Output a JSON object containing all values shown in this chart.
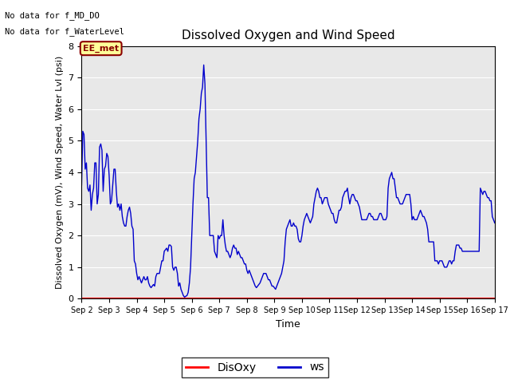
{
  "title": "Dissolved Oxygen and Wind Speed",
  "xlabel": "Time",
  "ylabel": "Dissolved Oxygen (mV), Wind Speed, Water Lvl (psi)",
  "ylim": [
    0.0,
    8.0
  ],
  "yticks": [
    0.0,
    1.0,
    2.0,
    3.0,
    4.0,
    5.0,
    6.0,
    7.0,
    8.0
  ],
  "text_line1": "No data for f_MD_DO",
  "text_line2": "No data for f_WaterLevel",
  "legend_labels": [
    "DisOxy",
    "ws"
  ],
  "legend_colors": [
    "#ff0000",
    "#0000cc"
  ],
  "disoxy_color": "#ff0000",
  "ws_color": "#0000cc",
  "background_color": "#e8e8e8",
  "ee_met_box_color": "#ffff99",
  "ee_met_text_color": "#8b0000",
  "ee_met_edge_color": "#8b0000",
  "ws_data": [
    3.6,
    5.3,
    5.2,
    4.1,
    4.3,
    3.5,
    3.4,
    3.6,
    2.8,
    3.3,
    3.5,
    4.3,
    4.3,
    3.0,
    3.3,
    4.8,
    4.9,
    4.7,
    3.4,
    4.1,
    4.2,
    4.6,
    4.5,
    3.9,
    3.0,
    3.1,
    3.6,
    4.1,
    4.1,
    3.4,
    2.9,
    3.0,
    2.8,
    3.0,
    2.6,
    2.4,
    2.3,
    2.3,
    2.6,
    2.8,
    2.9,
    2.7,
    2.3,
    2.2,
    1.2,
    1.1,
    0.8,
    0.6,
    0.7,
    0.6,
    0.5,
    0.6,
    0.7,
    0.6,
    0.6,
    0.7,
    0.5,
    0.4,
    0.35,
    0.4,
    0.45,
    0.4,
    0.7,
    0.8,
    0.8,
    0.8,
    1.0,
    1.2,
    1.2,
    1.5,
    1.55,
    1.6,
    1.5,
    1.7,
    1.7,
    1.65,
    1.0,
    0.9,
    1.0,
    1.0,
    0.8,
    0.4,
    0.5,
    0.3,
    0.2,
    0.1,
    0.05,
    0.08,
    0.1,
    0.2,
    0.5,
    1.0,
    2.0,
    3.0,
    3.8,
    4.0,
    4.5,
    5.0,
    5.7,
    6.0,
    6.5,
    6.7,
    7.4,
    6.8,
    5.0,
    3.2,
    3.2,
    2.0,
    2.0,
    2.0,
    2.0,
    1.5,
    1.4,
    1.3,
    2.0,
    1.9,
    2.0,
    2.0,
    2.5,
    2.0,
    1.7,
    1.5,
    1.5,
    1.4,
    1.3,
    1.4,
    1.6,
    1.7,
    1.6,
    1.6,
    1.4,
    1.5,
    1.4,
    1.3,
    1.3,
    1.2,
    1.1,
    1.1,
    0.9,
    0.8,
    0.9,
    0.8,
    0.7,
    0.6,
    0.5,
    0.4,
    0.35,
    0.4,
    0.45,
    0.5,
    0.6,
    0.7,
    0.8,
    0.8,
    0.8,
    0.7,
    0.6,
    0.6,
    0.5,
    0.4,
    0.4,
    0.35,
    0.3,
    0.4,
    0.5,
    0.6,
    0.7,
    0.8,
    1.0,
    1.2,
    1.8,
    2.2,
    2.3,
    2.4,
    2.5,
    2.3,
    2.3,
    2.4,
    2.3,
    2.3,
    2.2,
    1.9,
    1.8,
    1.8,
    2.0,
    2.3,
    2.5,
    2.6,
    2.7,
    2.6,
    2.5,
    2.4,
    2.5,
    2.6,
    3.0,
    3.2,
    3.4,
    3.5,
    3.4,
    3.2,
    3.2,
    3.0,
    3.1,
    3.2,
    3.2,
    3.2,
    3.0,
    2.9,
    2.8,
    2.7,
    2.7,
    2.5,
    2.4,
    2.4,
    2.6,
    2.8,
    2.8,
    2.9,
    3.2,
    3.3,
    3.4,
    3.4,
    3.5,
    3.2,
    3.0,
    3.2,
    3.3,
    3.3,
    3.2,
    3.1,
    3.1,
    3.0,
    2.9,
    2.7,
    2.5,
    2.5,
    2.5,
    2.5,
    2.5,
    2.6,
    2.7,
    2.7,
    2.6,
    2.6,
    2.5,
    2.5,
    2.5,
    2.5,
    2.6,
    2.7,
    2.7,
    2.6,
    2.5,
    2.5,
    2.5,
    2.6,
    3.5,
    3.8,
    3.9,
    4.0,
    3.8,
    3.8,
    3.5,
    3.2,
    3.2,
    3.1,
    3.0,
    3.0,
    3.0,
    3.1,
    3.2,
    3.3,
    3.3,
    3.3,
    3.3,
    3.0,
    2.5,
    2.6,
    2.5,
    2.5,
    2.5,
    2.6,
    2.7,
    2.8,
    2.7,
    2.6,
    2.6,
    2.5,
    2.4,
    2.2,
    1.8,
    1.8,
    1.8,
    1.8,
    1.8,
    1.2,
    1.2,
    1.2,
    1.1,
    1.2,
    1.2,
    1.2,
    1.1,
    1.0,
    1.0,
    1.0,
    1.1,
    1.2,
    1.2,
    1.1,
    1.2,
    1.2,
    1.5,
    1.7,
    1.7,
    1.7,
    1.6,
    1.6,
    1.5,
    1.5,
    1.5,
    1.5,
    1.5,
    1.5,
    1.5,
    1.5,
    1.5,
    1.5,
    1.5,
    1.5,
    1.5,
    1.5,
    1.5,
    3.5,
    3.4,
    3.3,
    3.4,
    3.4,
    3.3,
    3.2,
    3.2,
    3.1,
    3.1,
    2.6,
    2.5,
    2.4
  ],
  "x_start_day": 2,
  "x_end_day": 17,
  "xtick_days": [
    2,
    3,
    4,
    5,
    6,
    7,
    8,
    9,
    10,
    11,
    12,
    13,
    14,
    15,
    16,
    17
  ]
}
